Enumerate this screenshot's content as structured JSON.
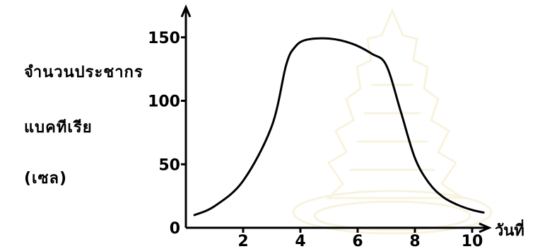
{
  "chart_data": {
    "type": "line",
    "ylabel_lines": [
      "จำนวนประชากร",
      "แบคทีเรีย",
      "(เซล)"
    ],
    "xlabel": "วันที่",
    "x_ticks": [
      2,
      4,
      6,
      8,
      10
    ],
    "y_ticks": [
      0,
      50,
      100,
      150
    ],
    "xlim": [
      0,
      11.5
    ],
    "ylim": [
      0,
      180
    ],
    "grid": false,
    "series": [
      {
        "x": [
          0.3,
          1.0,
          2.0,
          3.0,
          3.5,
          3.8,
          4.2,
          5.0,
          5.8,
          6.5,
          7.0,
          7.5,
          8.0,
          8.5,
          9.0,
          9.5,
          10.0,
          10.4
        ],
        "y": [
          10,
          17,
          37,
          80,
          128,
          142,
          148,
          149,
          145,
          137,
          128,
          92,
          55,
          35,
          24,
          18,
          14,
          12
        ]
      }
    ],
    "line_color": "#000000"
  }
}
